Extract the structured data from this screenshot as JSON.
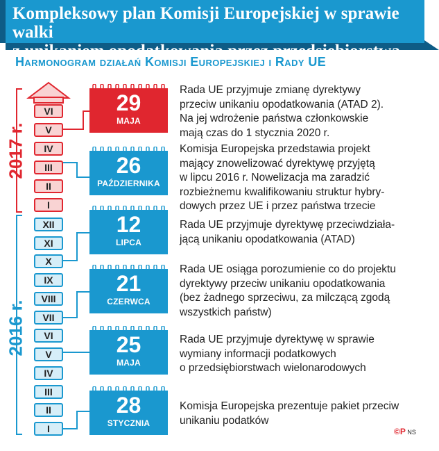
{
  "header": {
    "title_line1": "Kompleksowy plan Komisji Europejskiej w sprawie walki",
    "title_line2": "z unikaniem opodatkowania przez przedsiębiorstwa",
    "subtitle": "Harmonogram działań Komisji Europejskiej i Rady UE",
    "colors": {
      "blue": "#1a98cf",
      "red": "#e0262f"
    }
  },
  "years": {
    "y2017": "2017 r.",
    "y2016": "2016 r."
  },
  "months_2017": [
    "VI",
    "V",
    "IV",
    "III",
    "II",
    "I"
  ],
  "months_2016": [
    "XII",
    "XI",
    "X",
    "IX",
    "VIII",
    "VII",
    "VI",
    "V",
    "IV",
    "III",
    "II",
    "I"
  ],
  "events": [
    {
      "day": "29",
      "month": "MAJA",
      "text_lines": [
        "Rada UE przyjmuje zmianę dyrektywy",
        "przeciw unikaniu opodatkowania (ATAD 2).",
        "Na jej wdrożenie państwa członkowskie",
        "mają czas do 1 stycznia 2020 r."
      ]
    },
    {
      "day": "26",
      "month": "PAŹDZIERNIKA",
      "text_lines": [
        "Komisja Europejska przedstawia projekt",
        "mający znowelizować dyrektywę przyjętą",
        "w lipcu 2016 r. Nowelizacja ma zaradzić",
        "rozbieżnemu kwalifikowaniu struktur hybry-",
        "dowych przez UE i przez państwa trzecie"
      ]
    },
    {
      "day": "12",
      "month": "LIPCA",
      "text_lines": [
        "Rada UE przyjmuje dyrektywę przeciwdziała-",
        "jącą unikaniu opodatkowania (ATAD)"
      ]
    },
    {
      "day": "21",
      "month": "CZERWCA",
      "text_lines": [
        "Rada UE osiąga porozumienie co do projektu",
        "dyrektywy przeciw unikaniu opodatkowania",
        "(bez żadnego sprzeciwu, za milczącą zgodą",
        "wszystkich państw)"
      ]
    },
    {
      "day": "25",
      "month": "MAJA",
      "text_lines": [
        "Rada UE przyjmuje dyrektywę w sprawie",
        "wymiany informacji podatkowych",
        "o przedsiębiorstwach wielonarodowych"
      ]
    },
    {
      "day": "28",
      "month": "STYCZNIA",
      "text_lines": [
        "Komisja Europejska prezentuje pakiet przeciw",
        "unikaniu podatków"
      ]
    }
  ],
  "credit": {
    "logo": "©P",
    "author": "NS"
  }
}
